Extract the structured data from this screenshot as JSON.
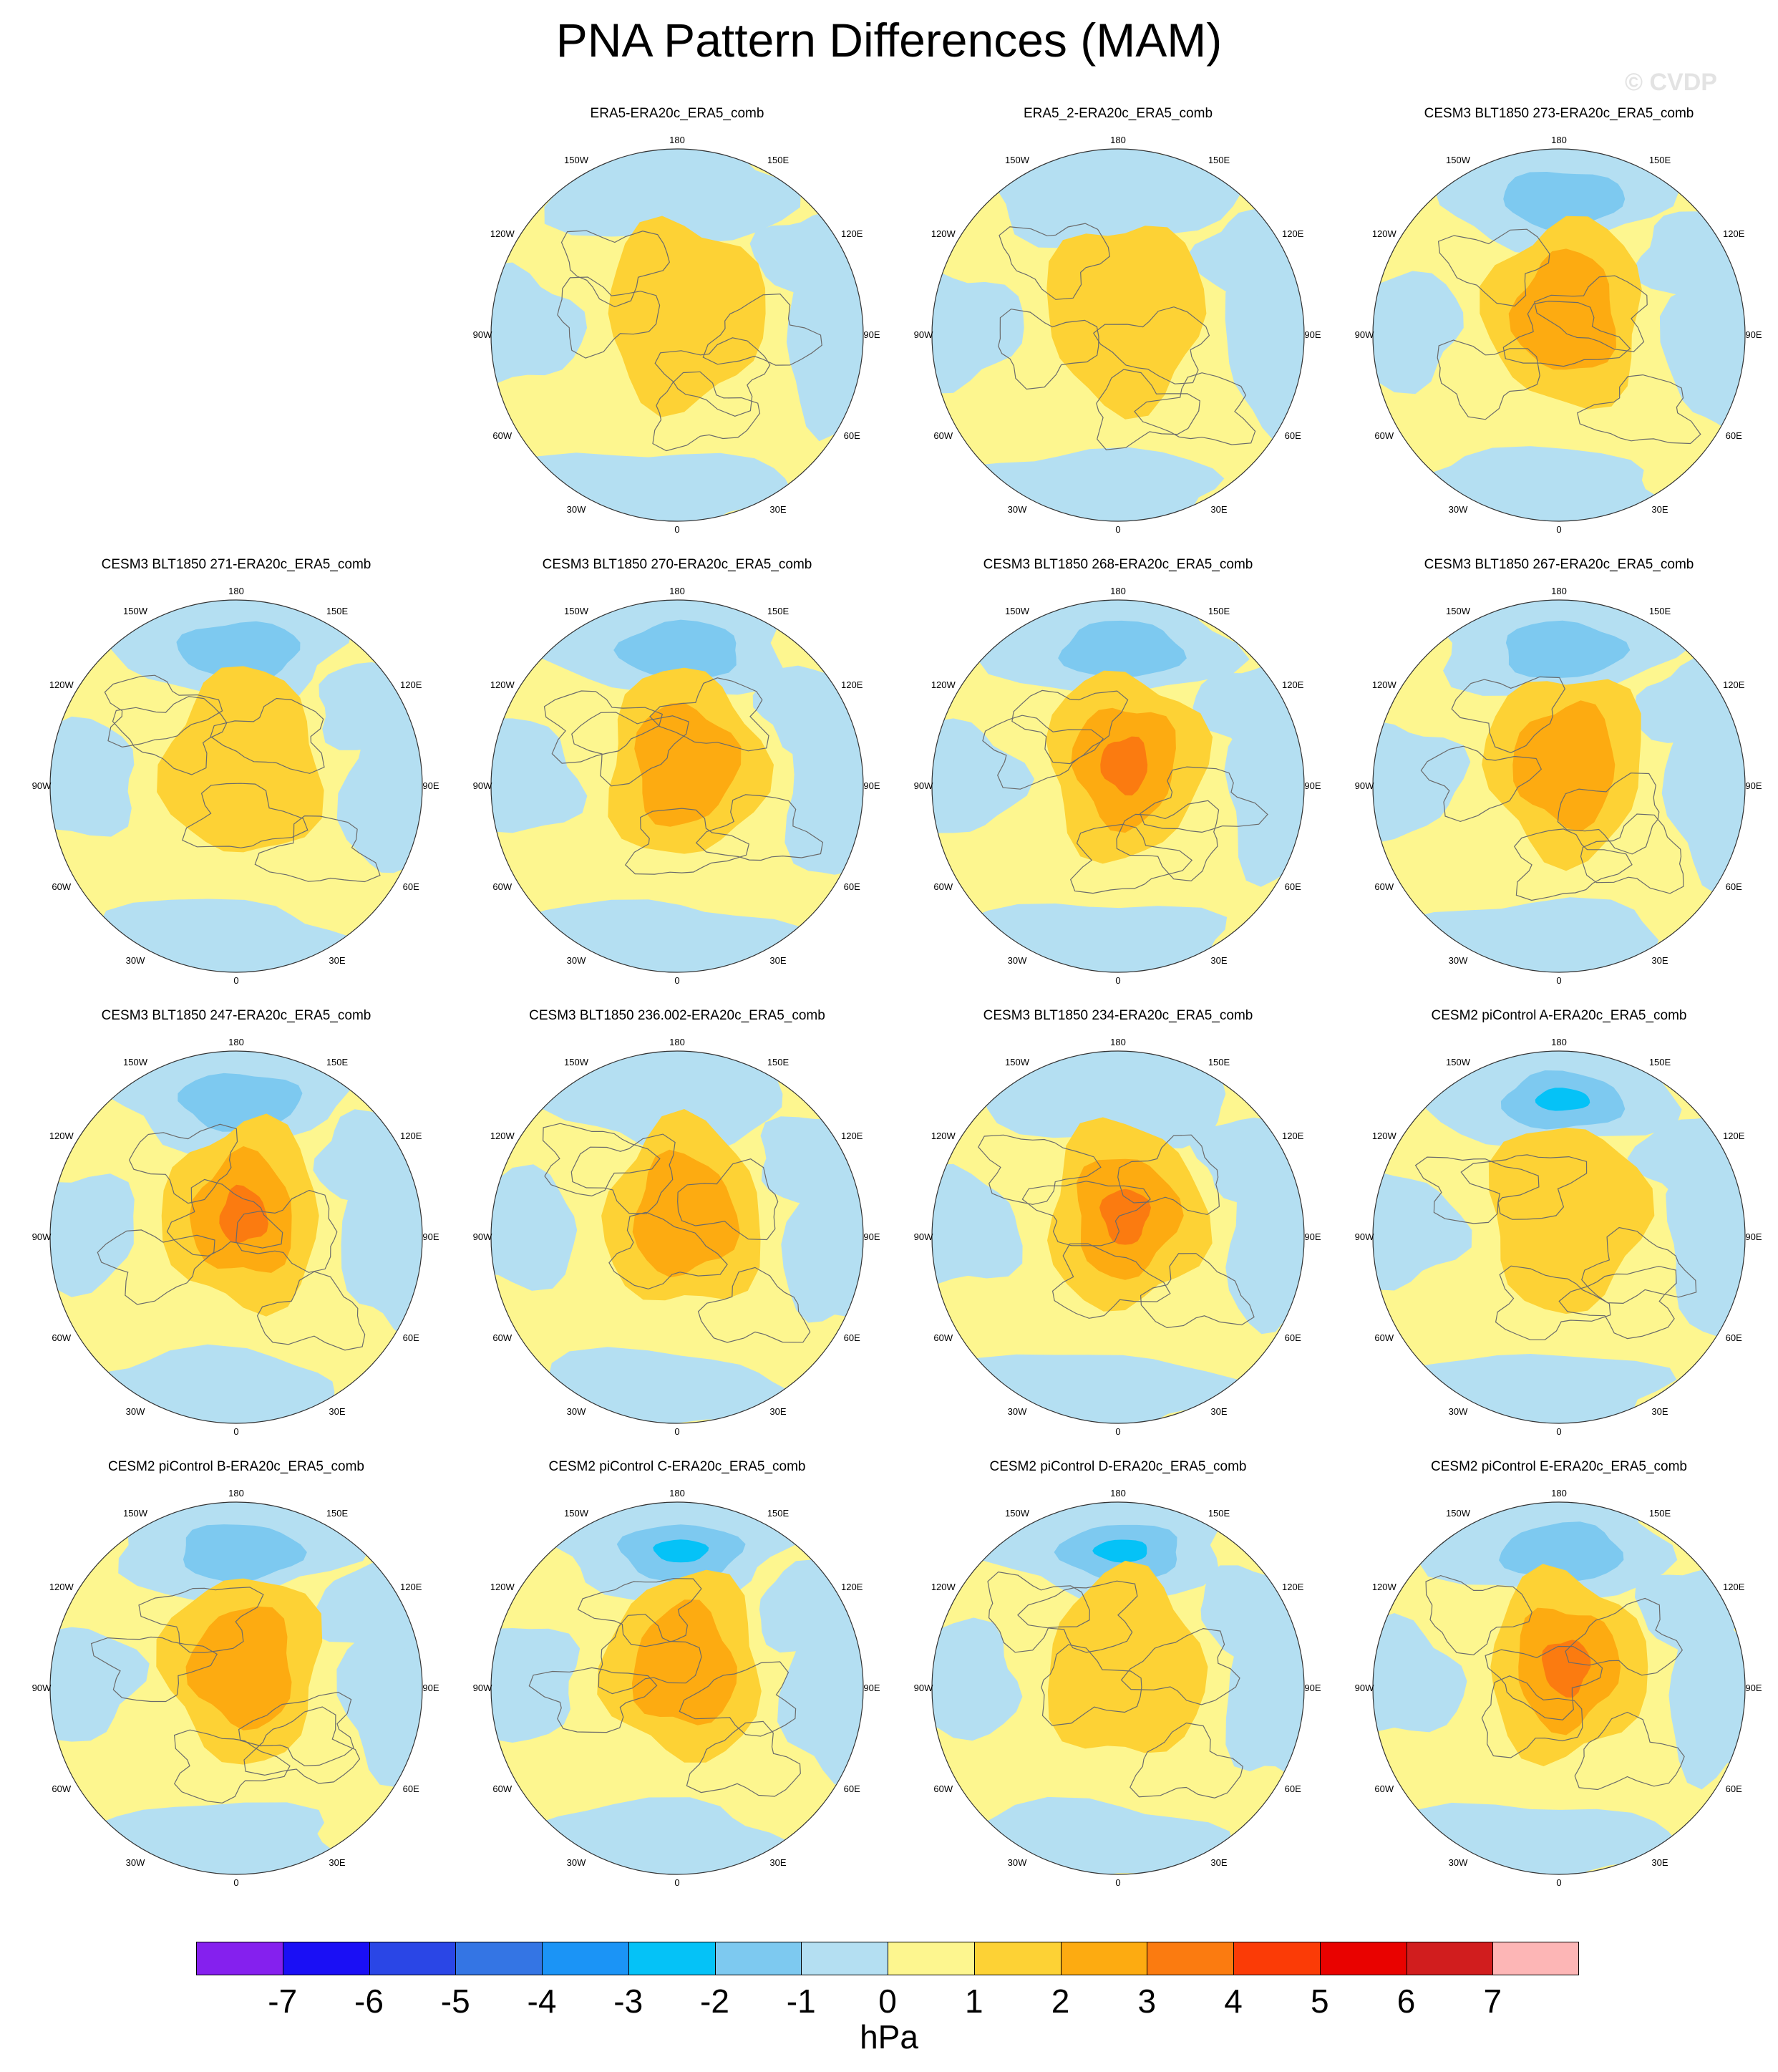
{
  "title": "PNA Pattern Differences (MAM)",
  "watermark": "© CVDP",
  "lon_labels": [
    "180",
    "150E",
    "120E",
    "90E",
    "60E",
    "30E",
    "0",
    "30W",
    "60W",
    "90W",
    "120W",
    "150W"
  ],
  "colors": {
    "neg1": "#b4dff2",
    "neg2": "#7dc9f0",
    "neg3": "#05c2f7",
    "pos1": "#fdf68f",
    "pos2": "#fdd235",
    "pos3": "#fdab11",
    "pos4": "#fb7b10"
  },
  "chart_data": {
    "type": "polar-contour-maps",
    "panels": [
      {
        "title": "ERA5-ERA20c_ERA5_comb",
        "max_positive_level": 2,
        "min_negative_level": -1
      },
      {
        "title": "ERA5_2-ERA20c_ERA5_comb",
        "max_positive_level": 2,
        "min_negative_level": -1
      },
      {
        "title": "CESM3 BLT1850 273-ERA20c_ERA5_comb",
        "max_positive_level": 3,
        "min_negative_level": -2
      },
      {
        "title": "CESM3 BLT1850 271-ERA20c_ERA5_comb",
        "max_positive_level": 2,
        "min_negative_level": -2
      },
      {
        "title": "CESM3 BLT1850 270-ERA20c_ERA5_comb",
        "max_positive_level": 3,
        "min_negative_level": -2
      },
      {
        "title": "CESM3 BLT1850 268-ERA20c_ERA5_comb",
        "max_positive_level": 4,
        "min_negative_level": -2
      },
      {
        "title": "CESM3 BLT1850 267-ERA20c_ERA5_comb",
        "max_positive_level": 3,
        "min_negative_level": -2
      },
      {
        "title": "CESM3 BLT1850 247-ERA20c_ERA5_comb",
        "max_positive_level": 4,
        "min_negative_level": -2
      },
      {
        "title": "CESM3 BLT1850 236.002-ERA20c_ERA5_comb",
        "max_positive_level": 3,
        "min_negative_level": -1
      },
      {
        "title": "CESM3 BLT1850 234-ERA20c_ERA5_comb",
        "max_positive_level": 4,
        "min_negative_level": -1
      },
      {
        "title": "CESM2 piControl A-ERA20c_ERA5_comb",
        "max_positive_level": 2,
        "min_negative_level": -3
      },
      {
        "title": "CESM2 piControl B-ERA20c_ERA5_comb",
        "max_positive_level": 3,
        "min_negative_level": -2
      },
      {
        "title": "CESM2 piControl C-ERA20c_ERA5_comb",
        "max_positive_level": 3,
        "min_negative_level": -3
      },
      {
        "title": "CESM2 piControl D-ERA20c_ERA5_comb",
        "max_positive_level": 2,
        "min_negative_level": -3
      },
      {
        "title": "CESM2 piControl E-ERA20c_ERA5_comb",
        "max_positive_level": 4,
        "min_negative_level": -2
      }
    ],
    "colorbar": {
      "units": "hPa",
      "levels": [
        -7,
        -6,
        -5,
        -4,
        -3,
        -2,
        -1,
        0,
        1,
        2,
        3,
        4,
        5,
        6,
        7
      ],
      "labels": [
        "-7",
        "-6",
        "-5",
        "-4",
        "-3",
        "-2",
        "-1",
        "0",
        "1",
        "2",
        "3",
        "4",
        "5",
        "6",
        "7"
      ],
      "colors": [
        "#8520ee",
        "#1a0ff5",
        "#2a46e6",
        "#3475e4",
        "#1b94f6",
        "#05c2f7",
        "#7dc9f0",
        "#b4dff2",
        "#fdf68f",
        "#fdd235",
        "#fdab11",
        "#fb7b10",
        "#fb3b06",
        "#e90200",
        "#d11d1e",
        "#fdb6b6"
      ]
    }
  }
}
